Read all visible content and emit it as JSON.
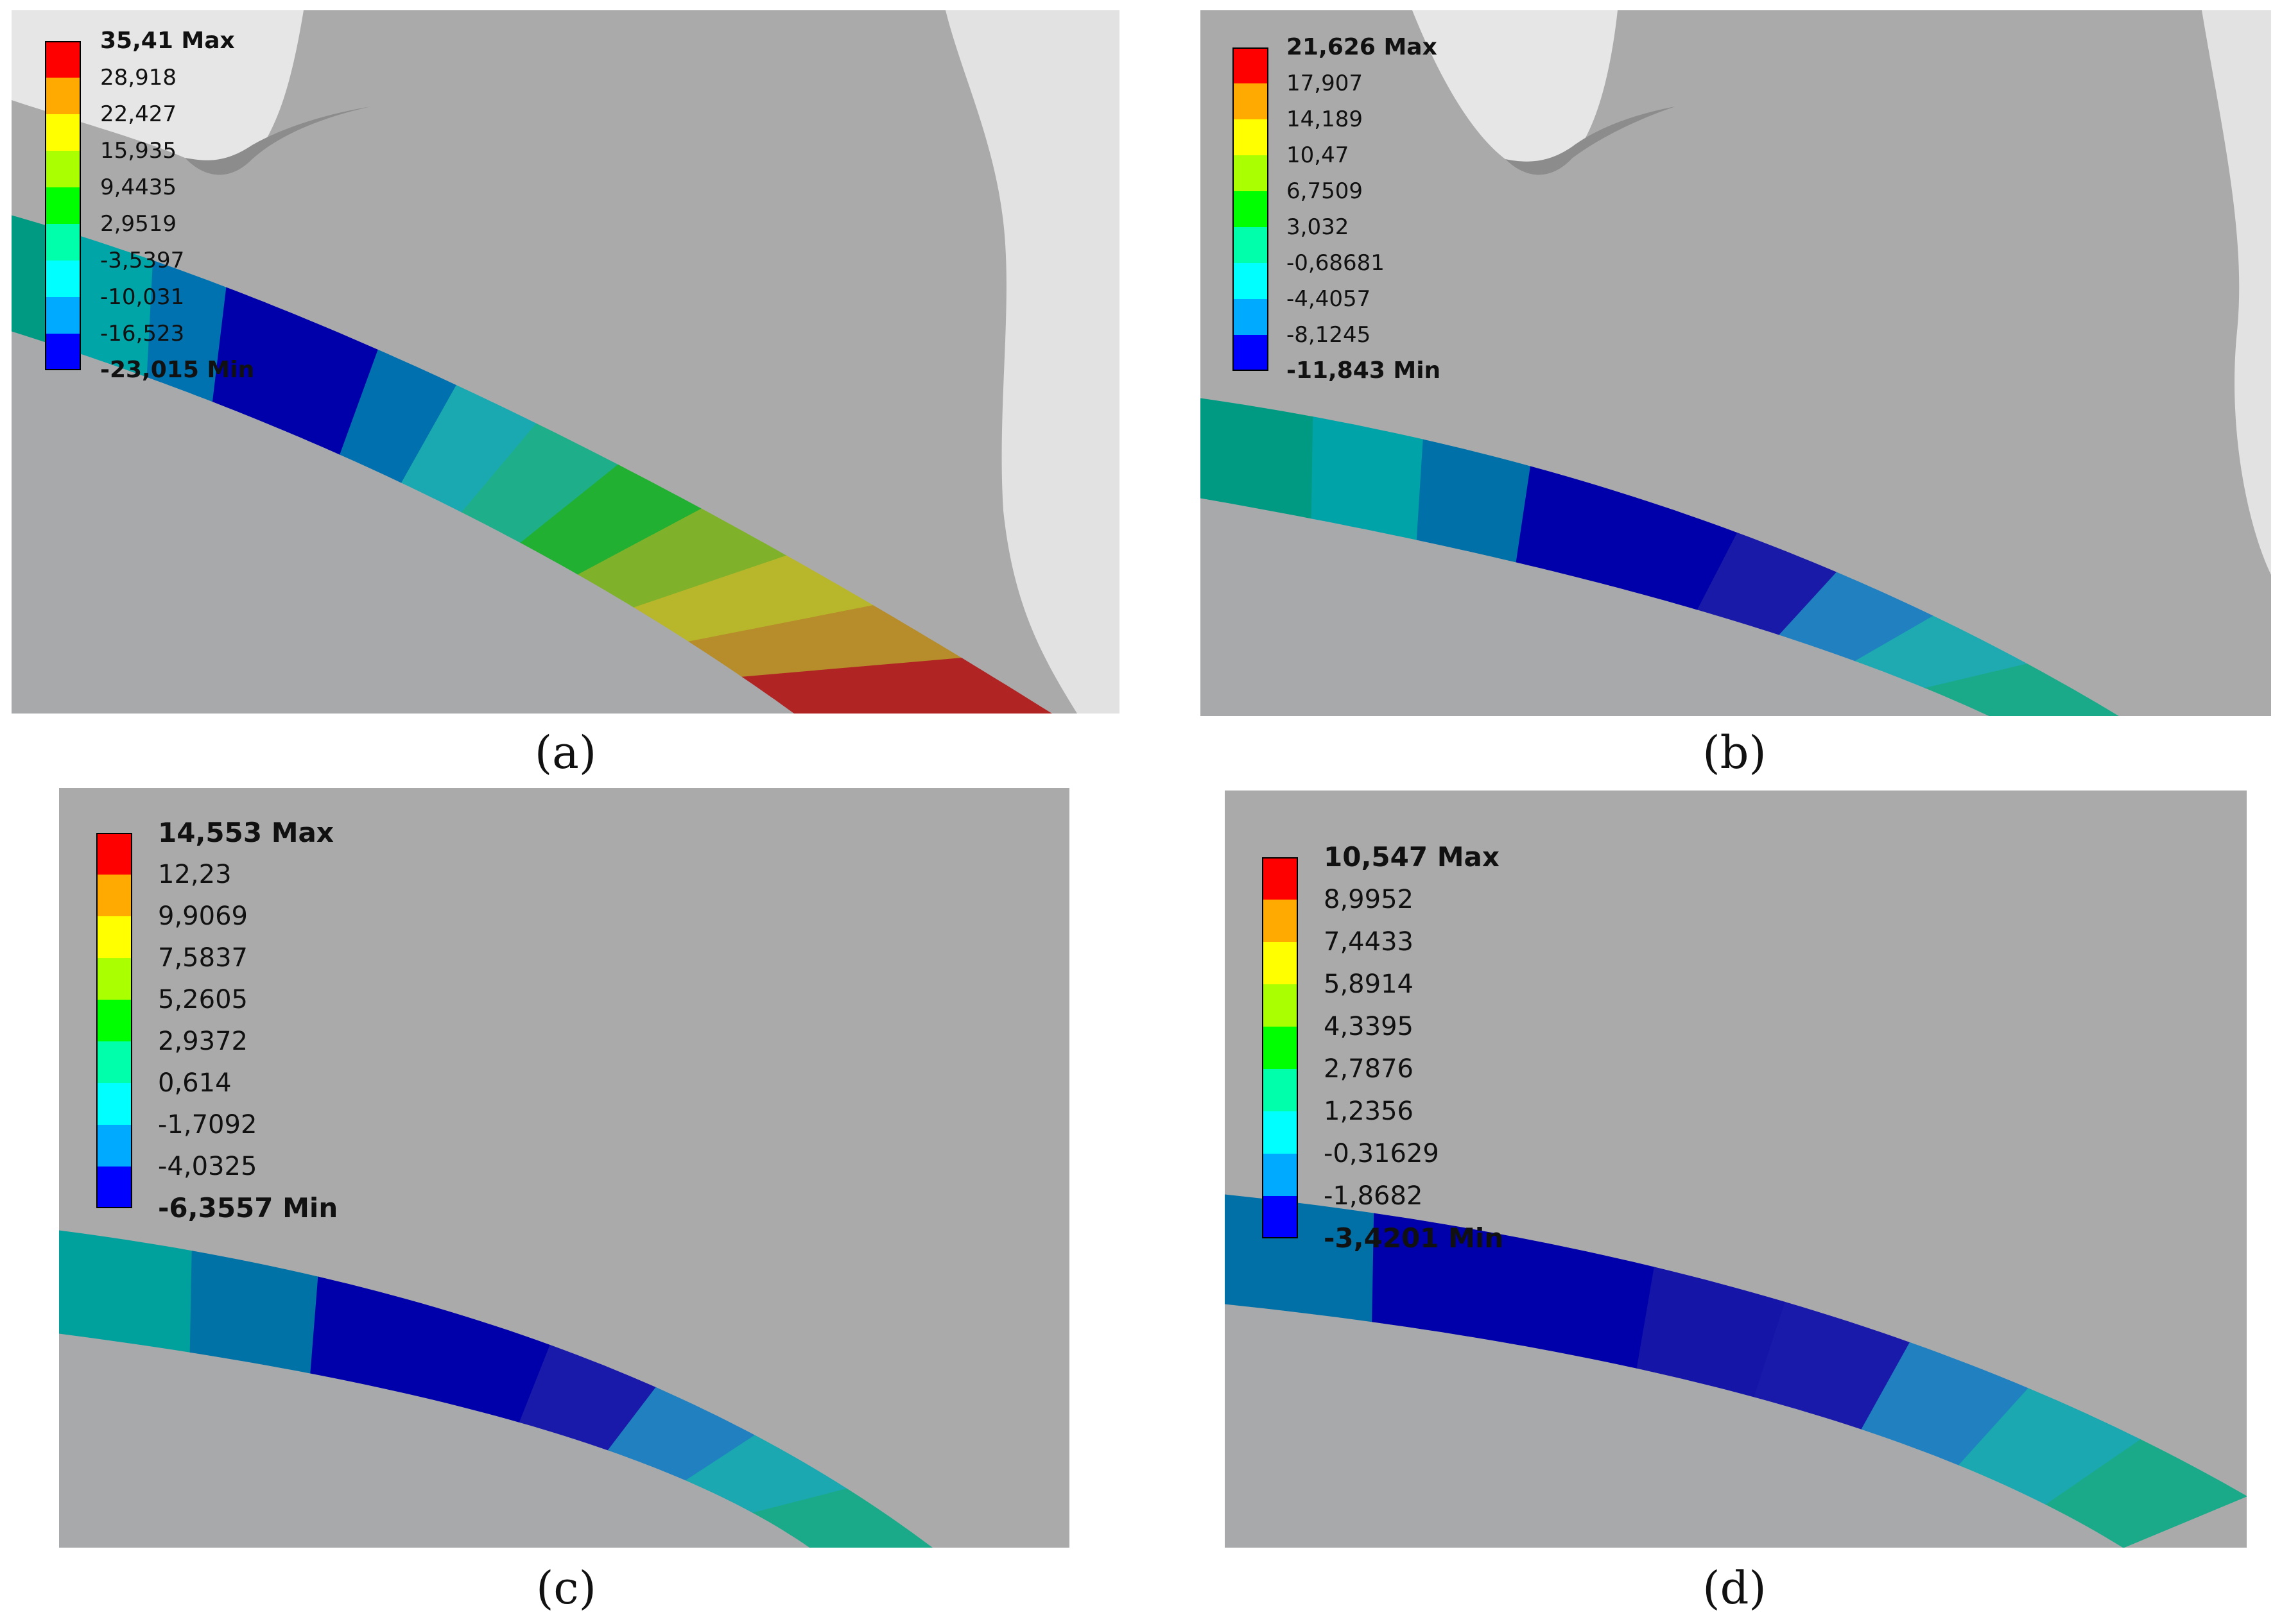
{
  "colors": {
    "background": "#ffffff",
    "model_gray": "#aaaaaa",
    "ring_inner_gray": "#a7a9ab",
    "gear_light": "#e6e6e6",
    "legend_bands": [
      "#ff0000",
      "#ffaa00",
      "#ffff00",
      "#aaff00",
      "#00ff00",
      "#00ffaa",
      "#00ffff",
      "#00aaff",
      "#0000ff"
    ]
  },
  "panels": [
    {
      "caption": "(a)",
      "legend": {
        "max": "35,41 Max",
        "ticks": [
          "28,918",
          "22,427",
          "15,935",
          "9,4435",
          "2,9519",
          "-3,5397",
          "-10,031",
          "-16,523"
        ],
        "min": "-23,015 Min"
      },
      "ring_band_colors": [
        "#009a82",
        "#00a5a8",
        "#0072b0",
        "#0000aa",
        "#0000aa",
        "#0070ae",
        "#1aa9b0",
        "#1fae8a",
        "#22b033",
        "#7fb22a",
        "#b8b62a",
        "#b68d2a",
        "#b02424"
      ]
    },
    {
      "caption": "(b)",
      "legend": {
        "max": "21,626 Max",
        "ticks": [
          "17,907",
          "14,189",
          "10,47",
          "6,7509",
          "3,032",
          "-0,68681",
          "-4,4057",
          "-8,1245"
        ],
        "min": "-11,843 Min"
      },
      "ring_band_colors": [
        "#009a82",
        "#00a3a8",
        "#0070a8",
        "#0000aa",
        "#0000aa",
        "#1a1aa8",
        "#2080c0",
        "#1eaab0",
        "#1aaa8a"
      ]
    },
    {
      "caption": "(c)",
      "legend": {
        "max": "14,553 Max",
        "ticks": [
          "12,23",
          "9,9069",
          "7,5837",
          "5,2605",
          "2,9372",
          "0,614",
          "-1,7092",
          "-4,0325"
        ],
        "min": "-6,3557 Min"
      },
      "ring_band_colors": [
        "#00a09c",
        "#0072a6",
        "#0000aa",
        "#0000aa",
        "#1a1aaa",
        "#2080c0",
        "#1ba8b0",
        "#1aaa8a"
      ]
    },
    {
      "caption": "(d)",
      "legend": {
        "max": "10,547 Max",
        "ticks": [
          "8,9952",
          "7,4433",
          "5,8914",
          "4,3395",
          "2,7876",
          "1,2356",
          "-0,31629",
          "-1,8682"
        ],
        "min": "-3,4201 Min"
      },
      "ring_band_colors": [
        "#0070a6",
        "#0000aa",
        "#0000aa",
        "#1515a8",
        "#1a1aaa",
        "#2080c0",
        "#1ba8b0",
        "#1aaa8a"
      ]
    }
  ]
}
